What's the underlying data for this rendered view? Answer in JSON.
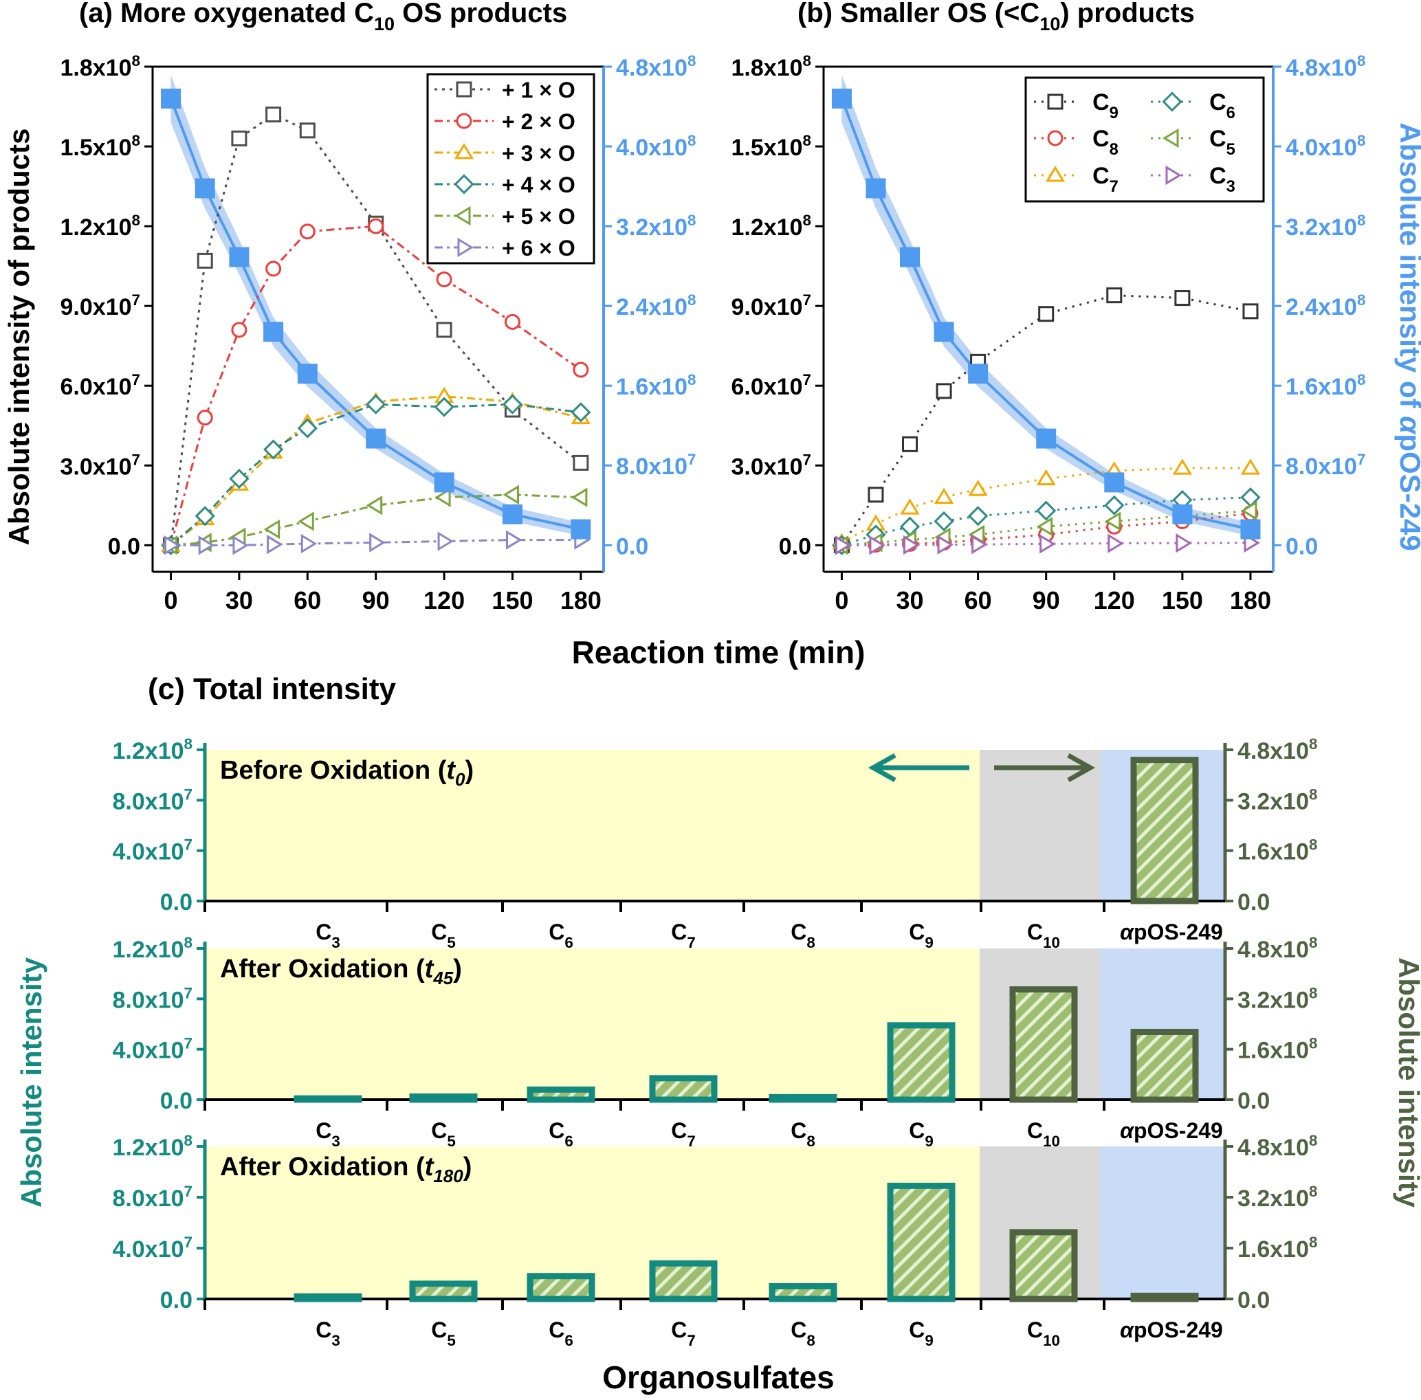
{
  "colors": {
    "black": "#000000",
    "blue": "#4f9bf0",
    "blue_band": "#bcd5f5",
    "teal": "#138a80",
    "olive": "#4f6343",
    "bar_fill": "#9dbe70",
    "yellow_bg": "#ffffcc",
    "gray_bg": "#d9d9d9",
    "blue_bg": "#c8dcf8",
    "series": [
      "#4d4d4d",
      "#f23b3b",
      "#f5a800",
      "#2d8c83",
      "#7aa53a",
      "#8a86c8"
    ],
    "series_b": [
      "#333333",
      "#f23b3b",
      "#f5a800",
      "#2d8c83",
      "#7aa53a",
      "#a569b8"
    ]
  },
  "x_axis_label": "Reaction time (min)",
  "panel_a": {
    "title_pre": "(a) More oxygenated C",
    "title_sub": "10",
    "title_post": " OS products",
    "ylabel": "Absolute intensity of products"
  },
  "panel_b": {
    "title_pre": "(b) Smaller OS (<C",
    "title_sub": "10",
    "title_post": ") products",
    "ylabel_pre": "Absolute intensity of ",
    "ylabel_italic": "α",
    "ylabel_post": "pOS-249"
  },
  "panel_c": {
    "title": "(c) Total intensity",
    "ylabel_left": "Absolute intensity",
    "ylabel_right": "Absolute intensity",
    "xlabel": "Organosulfates",
    "subpanels": [
      {
        "label_pre": "Before Oxidation (",
        "label_italic": "t",
        "label_sub": "0",
        "label_post": ")"
      },
      {
        "label_pre": "After Oxidation (",
        "label_italic": "t",
        "label_sub": "45",
        "label_post": ")"
      },
      {
        "label_pre": "After Oxidation (",
        "label_italic": "t",
        "label_sub": "180",
        "label_post": ")"
      }
    ]
  },
  "chart_data": [
    {
      "type": "line",
      "title": "(a) More oxygenated C10 OS products",
      "xlabel": "Reaction time (min)",
      "ylabel": "Absolute intensity of products",
      "y2label": "Absolute intensity of αpOS-249",
      "xlim": [
        -8,
        190
      ],
      "ylim": [
        -10000000.0,
        180000000.0
      ],
      "y2lim": [
        -26700000.0,
        480000000.0
      ],
      "x_ticks": [
        0,
        30,
        60,
        90,
        120,
        150,
        180
      ],
      "y_ticks": [
        "0.0",
        "3.0x10^7",
        "6.0x10^7",
        "9.0x10^7",
        "1.2x10^8",
        "1.5x10^8",
        "1.8x10^8"
      ],
      "y_tick_values": [
        0,
        30000000.0,
        60000000.0,
        90000000.0,
        120000000.0,
        150000000.0,
        180000000.0
      ],
      "y2_ticks": [
        "0.0",
        "8.0x10^7",
        "1.6x10^8",
        "2.4x10^8",
        "3.2x10^8",
        "4.0x10^8",
        "4.8x10^8"
      ],
      "y2_tick_values": [
        0,
        80000000.0,
        160000000.0,
        240000000.0,
        320000000.0,
        400000000.0,
        480000000.0
      ],
      "legend_position": "top-right",
      "series": [
        {
          "name": "+ 1 × O",
          "marker": "square",
          "dash": "dot",
          "x": [
            0,
            15,
            30,
            45,
            60,
            90,
            120,
            150,
            180
          ],
          "y": [
            0,
            107000000.0,
            153000000.0,
            162000000.0,
            156000000.0,
            121000000.0,
            81000000.0,
            51000000.0,
            31000000.0
          ]
        },
        {
          "name": "+ 2 × O",
          "marker": "circle",
          "dash": "dashdot",
          "x": [
            0,
            15,
            30,
            45,
            60,
            90,
            120,
            150,
            180
          ],
          "y": [
            0,
            48000000.0,
            81000000.0,
            104000000.0,
            118000000.0,
            120000000.0,
            100000000.0,
            84000000.0,
            66000000.0
          ]
        },
        {
          "name": "+ 3 × O",
          "marker": "triangle-up",
          "dash": "dashdot",
          "x": [
            0,
            15,
            30,
            45,
            60,
            90,
            120,
            150,
            180
          ],
          "y": [
            0,
            10000000.0,
            23000000.0,
            35000000.0,
            46000000.0,
            54000000.0,
            56000000.0,
            54000000.0,
            48000000.0
          ]
        },
        {
          "name": "+ 4 × O",
          "marker": "diamond",
          "dash": "dashdot",
          "x": [
            0,
            15,
            30,
            45,
            60,
            90,
            120,
            150,
            180
          ],
          "y": [
            0,
            11000000.0,
            25000000.0,
            36000000.0,
            44000000.0,
            53000000.0,
            52000000.0,
            53000000.0,
            50000000.0
          ]
        },
        {
          "name": "+ 5 × O",
          "marker": "triangle-left",
          "dash": "dashdot",
          "x": [
            0,
            15,
            30,
            45,
            60,
            90,
            120,
            150,
            180
          ],
          "y": [
            0,
            1000000.0,
            3000000.0,
            6000000.0,
            9000000.0,
            15000000.0,
            18000000.0,
            19000000.0,
            18000000.0
          ]
        },
        {
          "name": "+ 6 × O",
          "marker": "triangle-right",
          "dash": "dashdot",
          "x": [
            0,
            15,
            30,
            45,
            60,
            90,
            120,
            150,
            180
          ],
          "y": [
            0,
            0.0,
            0.0,
            300000.0,
            600000.0,
            1000000.0,
            1500000.0,
            2000000.0,
            2000000.0
          ]
        }
      ],
      "series_y2": [
        {
          "name": "αpOS-249",
          "marker": "filled-square",
          "x": [
            0,
            15,
            30,
            45,
            60,
            90,
            120,
            150,
            180
          ],
          "y": [
            448000000.0,
            358000000.0,
            289000000.0,
            214000000.0,
            172000000.0,
            107000000.0,
            63000000.0,
            31000000.0,
            16000000.0
          ]
        }
      ]
    },
    {
      "type": "line",
      "title": "(b) Smaller OS (<C10) products",
      "xlabel": "Reaction time (min)",
      "y2label": "Absolute intensity of αpOS-249",
      "xlim": [
        -8,
        190
      ],
      "ylim": [
        -10000000.0,
        180000000.0
      ],
      "y2lim": [
        -26700000.0,
        480000000.0
      ],
      "x_ticks": [
        0,
        30,
        60,
        90,
        120,
        150,
        180
      ],
      "y_ticks": [
        "0.0",
        "3.0x10^7",
        "6.0x10^7",
        "9.0x10^7",
        "1.2x10^8",
        "1.5x10^8",
        "1.8x10^8"
      ],
      "y_tick_values": [
        0,
        30000000.0,
        60000000.0,
        90000000.0,
        120000000.0,
        150000000.0,
        180000000.0
      ],
      "y2_ticks": [
        "0.0",
        "8.0x10^7",
        "1.6x10^8",
        "2.4x10^8",
        "3.2x10^8",
        "4.0x10^8",
        "4.8x10^8"
      ],
      "y2_tick_values": [
        0,
        80000000.0,
        160000000.0,
        240000000.0,
        320000000.0,
        400000000.0,
        480000000.0
      ],
      "legend_position": "top-right",
      "series": [
        {
          "name": "C9",
          "marker": "square",
          "x": [
            0,
            15,
            30,
            45,
            60,
            90,
            120,
            150,
            180
          ],
          "y": [
            0,
            19000000.0,
            38000000.0,
            58000000.0,
            69000000.0,
            87000000.0,
            94000000.0,
            93000000.0,
            88000000.0
          ]
        },
        {
          "name": "C8",
          "marker": "circle",
          "x": [
            0,
            15,
            30,
            45,
            60,
            90,
            120,
            150,
            180
          ],
          "y": [
            0,
            200000.0,
            500000.0,
            1000000.0,
            2000000.0,
            4000000.0,
            7000000.0,
            9000000.0,
            12000000.0
          ]
        },
        {
          "name": "C7",
          "marker": "triangle-up",
          "x": [
            0,
            15,
            30,
            45,
            60,
            90,
            120,
            150,
            180
          ],
          "y": [
            1000000.0,
            8000000.0,
            14000000.0,
            18000000.0,
            21000000.0,
            25000000.0,
            28000000.0,
            29000000.0,
            29000000.0
          ]
        },
        {
          "name": "C6",
          "marker": "diamond",
          "x": [
            0,
            15,
            30,
            45,
            60,
            90,
            120,
            150,
            180
          ],
          "y": [
            0,
            4000000.0,
            7000000.0,
            9000000.0,
            11000000.0,
            13000000.0,
            15000000.0,
            17000000.0,
            18000000.0
          ]
        },
        {
          "name": "C5",
          "marker": "triangle-left",
          "x": [
            0,
            15,
            30,
            45,
            60,
            90,
            120,
            150,
            180
          ],
          "y": [
            0,
            1000000.0,
            2000000.0,
            3000000.0,
            4000000.0,
            7000000.0,
            9000000.0,
            11000000.0,
            13000000.0
          ]
        },
        {
          "name": "C3",
          "marker": "triangle-right",
          "x": [
            0,
            15,
            30,
            45,
            60,
            90,
            120,
            150,
            180
          ],
          "y": [
            0,
            0.0,
            100000.0,
            200000.0,
            300000.0,
            500000.0,
            700000.0,
            800000.0,
            900000.0
          ]
        }
      ],
      "series_y2": [
        {
          "name": "αpOS-249",
          "marker": "filled-square",
          "x": [
            0,
            15,
            30,
            45,
            60,
            90,
            120,
            150,
            180
          ],
          "y": [
            448000000.0,
            358000000.0,
            289000000.0,
            214000000.0,
            172000000.0,
            107000000.0,
            63000000.0,
            31000000.0,
            16000000.0
          ]
        }
      ]
    },
    {
      "type": "bar",
      "title": "(c) Total intensity",
      "xlabel": "Organosulfates",
      "ylabel": "Absolute intensity",
      "y2label": "Absolute intensity",
      "categories": [
        "C3",
        "C5",
        "C6",
        "C7",
        "C8",
        "C9",
        "C10",
        "αpOS-249"
      ],
      "axis_for_category": [
        "left",
        "left",
        "left",
        "left",
        "left",
        "left",
        "right",
        "right"
      ],
      "ylim": [
        0,
        120000000.0
      ],
      "y2lim": [
        0,
        480000000.0
      ],
      "y_ticks": [
        "0.0",
        "4.0x10^7",
        "8.0x10^7",
        "1.2x10^8"
      ],
      "y_tick_values": [
        0,
        40000000.0,
        80000000.0,
        120000000.0
      ],
      "y2_ticks": [
        "0.0",
        "1.6x10^8",
        "3.2x10^8",
        "4.8x10^8"
      ],
      "y2_tick_values": [
        0,
        160000000.0,
        320000000.0,
        480000000.0
      ],
      "series": [
        {
          "name": "Before Oxidation (t0)",
          "values": [
            0,
            0,
            0,
            0,
            0,
            0,
            0,
            448000000.0
          ]
        },
        {
          "name": "After Oxidation (t45)",
          "values": [
            1000000.0,
            2500000.0,
            8000000.0,
            17000000.0,
            2000000.0,
            59000000.0,
            350000000.0,
            215000000.0
          ]
        },
        {
          "name": "After Oxidation (t180)",
          "values": [
            2000000.0,
            12000000.0,
            18000000.0,
            28000000.0,
            10000000.0,
            89000000.0,
            210000000.0,
            10000000.0
          ]
        }
      ]
    }
  ]
}
